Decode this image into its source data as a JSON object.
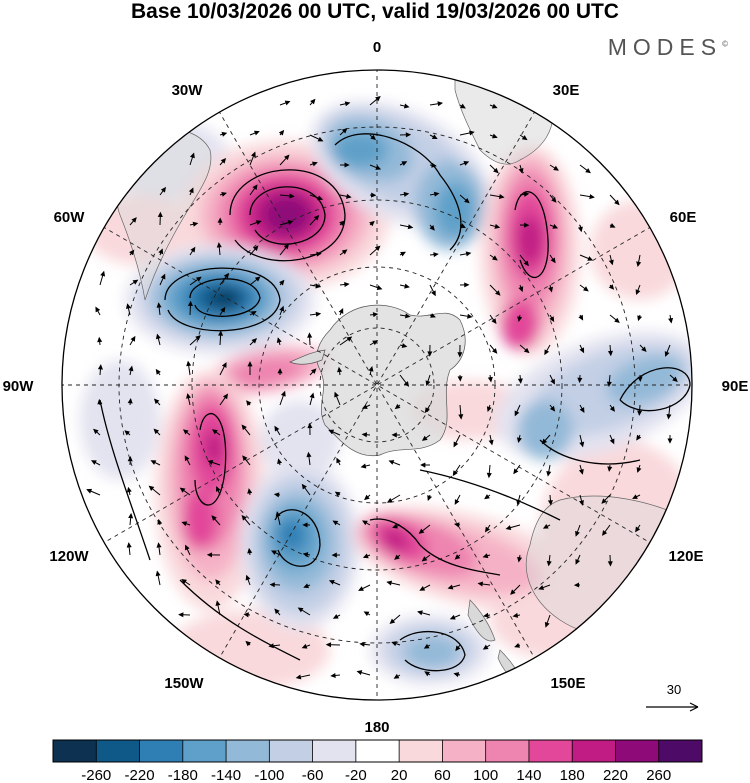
{
  "title": "Base 10/03/2026 00 UTC, valid 19/03/2026 00 UTC",
  "brand": "MODES",
  "brand_mark": "©",
  "map": {
    "projection": "south polar stereographic",
    "longitude_labels": {
      "top": "0",
      "top_right": "30E",
      "right_upper": "60E",
      "right": "90E",
      "right_lower": "120E",
      "bottom_right": "150E",
      "bottom": "180",
      "bottom_left": "150W",
      "left_lower": "120W",
      "left": "90W",
      "left_upper": "60W",
      "top_left": "30W"
    },
    "reference_vector": "30"
  },
  "colorbar": {
    "ticks": [
      "-260",
      "-220",
      "-180",
      "-140",
      "-100",
      "-60",
      "-20",
      "20",
      "60",
      "100",
      "140",
      "180",
      "220",
      "260"
    ],
    "colors": [
      "#0d3150",
      "#0f5988",
      "#2f7fb5",
      "#5ea0c9",
      "#93b9d8",
      "#c2cfe5",
      "#e3e3f0",
      "#ffffff",
      "#f9d9dc",
      "#f5b2c6",
      "#ee84b0",
      "#e2479a",
      "#c01c84",
      "#8e0a79",
      "#4d0a66"
    ]
  }
}
